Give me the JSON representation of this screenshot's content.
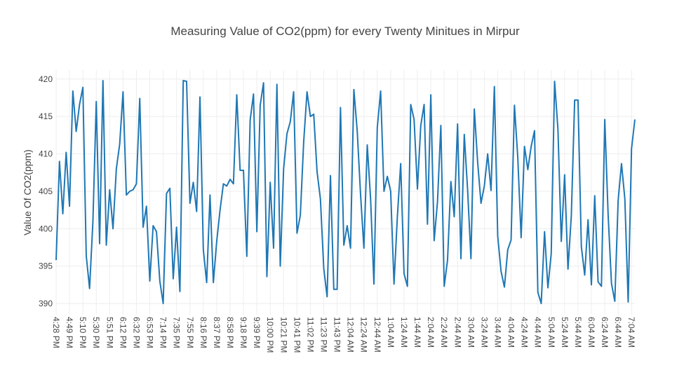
{
  "chart_data": {
    "type": "line",
    "title": "Measuring Value of CO2(ppm) for every Twenty Minitues in Mirpur",
    "xlabel": "",
    "ylabel": "Value Of CO2(ppm)",
    "ylim": [
      388.5,
      421.2
    ],
    "yticks": [
      390,
      395,
      400,
      405,
      410,
      415,
      420
    ],
    "grid": true,
    "legend": "none",
    "line_color": "#1f77b4",
    "xtick_labels": [
      "4:28 PM",
      "4:49 PM",
      "5:10 PM",
      "5:30 PM",
      "5:51 PM",
      "6:12 PM",
      "6:32 PM",
      "6:53 PM",
      "7:14 PM",
      "7:35 PM",
      "7:55 PM",
      "8:16 PM",
      "8:37 PM",
      "8:58 PM",
      "9:18 PM",
      "9:39 PM",
      "10:00 PM",
      "10:21 PM",
      "10:41 PM",
      "11:02 PM",
      "11:23 PM",
      "11:43 PM",
      "12:04 AM",
      "12:24 AM",
      "12:44 AM",
      "1:04 AM",
      "1:24 AM",
      "1:44 AM",
      "2:04 AM",
      "2:24 AM",
      "2:44 AM",
      "3:04 AM",
      "3:24 AM",
      "3:44 AM",
      "4:04 AM",
      "4:24 AM",
      "4:44 AM",
      "5:04 AM",
      "5:24 AM",
      "5:44 AM",
      "6:04 AM",
      "6:24 AM",
      "6:44 AM",
      "7:04 AM"
    ],
    "series": [
      {
        "values": [
          395.8,
          409,
          402,
          410.2,
          403,
          418.4,
          413,
          416.6,
          418.9,
          396.4,
          392,
          401,
          417,
          398,
          419.8,
          397.8,
          405.2,
          400,
          408,
          411.3,
          418.3,
          404.5,
          405,
          405.2,
          406,
          417.4,
          400.2,
          403,
          393,
          400.4,
          399.6,
          393,
          390,
          404.7,
          405.4,
          393.3,
          400.2,
          391.6,
          419.8,
          419.7,
          403.4,
          406.2,
          402.3,
          417.6,
          397.2,
          392.8,
          404.5,
          392.8,
          398.3,
          402.5,
          406,
          405.7,
          406.6,
          406,
          417.9,
          407.8,
          407.8,
          396.3,
          414.5,
          418,
          399.6,
          416.5,
          419.5,
          393.6,
          406.2,
          397.4,
          419.3,
          395,
          408,
          412.7,
          414.3,
          418.3,
          399.4,
          401.8,
          411.6,
          418.3,
          415,
          415.3,
          407.6,
          404,
          394.7,
          390.9,
          407.1,
          391.9,
          391.9,
          416.2,
          397.8,
          400.4,
          397.4,
          418.6,
          413.1,
          404.6,
          397.4,
          411.2,
          404,
          392.6,
          413.5,
          418.4,
          405,
          407,
          405,
          392.6,
          401.6,
          408.7,
          394,
          392.3,
          416.6,
          414.6,
          405.3,
          413.8,
          416.6,
          400.6,
          417.9,
          398.4,
          403.6,
          413.8,
          392.3,
          395.8,
          406.3,
          401.6,
          414,
          396,
          412.6,
          405.2,
          396,
          416,
          408.9,
          403.4,
          405.7,
          410,
          405.1,
          419,
          399,
          394.3,
          392.2,
          397.2,
          398.5,
          416.5,
          409.5,
          398.8,
          411,
          407.9,
          411,
          413.1,
          391.5,
          390,
          399.6,
          392.1,
          396.7,
          419.7,
          413.3,
          398.3,
          407.2,
          394.6,
          401.7,
          417.2,
          417.2,
          397.6,
          393.8,
          401.2,
          392.5,
          404.4,
          392.9,
          392.3,
          414.6,
          401.9,
          392.7,
          390.3,
          403.8,
          408.7,
          404,
          390.2,
          410.7,
          414.6
        ]
      }
    ]
  }
}
